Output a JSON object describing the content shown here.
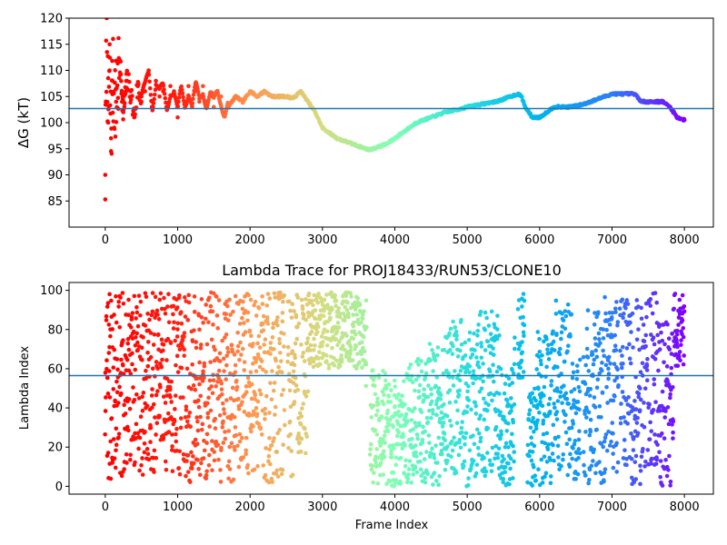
{
  "figure": {
    "colormap": "rainbow",
    "colormap_stops": [
      "#8000ff",
      "#2c7ef7",
      "#00b4eb",
      "#2adddd",
      "#80ffb4",
      "#d4dd80",
      "#ff964f",
      "#ff1c0e",
      "#ff0000"
    ],
    "color_encodes": "reverse of frame order (earliest frames red, latest violet)",
    "hline_color": "#1f77b4"
  },
  "chart_data": [
    {
      "type": "line",
      "title": "",
      "xlabel": "",
      "ylabel": "ΔG (kT)",
      "xlim": [
        -500,
        8400
      ],
      "ylim": [
        80,
        120
      ],
      "xticks": [
        0,
        1000,
        2000,
        3000,
        4000,
        5000,
        6000,
        7000,
        8000
      ],
      "yticks": [
        85,
        90,
        95,
        100,
        105,
        110,
        115,
        120
      ],
      "hline": 102.7,
      "grid": false,
      "legend": "none",
      "marker": "dot",
      "x": [
        0,
        20,
        40,
        60,
        80,
        100,
        150,
        200,
        250,
        300,
        350,
        400,
        450,
        500,
        550,
        600,
        650,
        700,
        750,
        800,
        850,
        900,
        950,
        1000,
        1050,
        1100,
        1150,
        1200,
        1250,
        1300,
        1350,
        1400,
        1450,
        1500,
        1550,
        1600,
        1650,
        1700,
        1750,
        1800,
        1900,
        2000,
        2100,
        2200,
        2300,
        2400,
        2500,
        2600,
        2700,
        2750,
        2800,
        2900,
        3000,
        3100,
        3200,
        3300,
        3400,
        3500,
        3600,
        3650,
        3700,
        3800,
        3900,
        4000,
        4100,
        4200,
        4300,
        4400,
        4500,
        4600,
        4700,
        4800,
        4900,
        5000,
        5100,
        5200,
        5300,
        5400,
        5500,
        5600,
        5700,
        5750,
        5800,
        5900,
        6000,
        6100,
        6200,
        6300,
        6400,
        6500,
        6600,
        6700,
        6800,
        6900,
        7000,
        7100,
        7200,
        7300,
        7350,
        7400,
        7500,
        7600,
        7700,
        7800,
        7900,
        8000
      ],
      "y": [
        90,
        120,
        100,
        110,
        97,
        108,
        104,
        112,
        102,
        108,
        106,
        101,
        107,
        104,
        106,
        110,
        104,
        108,
        105,
        106,
        103,
        107,
        106,
        101,
        106,
        104,
        107,
        103,
        106,
        104,
        107,
        104,
        105,
        103,
        106,
        105,
        102,
        103,
        104,
        105,
        104,
        106,
        105,
        106,
        105,
        105,
        105,
        104.7,
        106,
        105,
        104,
        102,
        99,
        98,
        97,
        96.5,
        96,
        95.5,
        95,
        94.8,
        95,
        95.5,
        96,
        97,
        98,
        99,
        100,
        100.5,
        101,
        101.5,
        102,
        102.3,
        102.6,
        103,
        103.3,
        103.5,
        103.8,
        104,
        104.5,
        105,
        105.5,
        105,
        103,
        101,
        101,
        102,
        103,
        103,
        103,
        103.2,
        103.5,
        104,
        104.5,
        105,
        105.5,
        105.5,
        105.5,
        105.5,
        105,
        104,
        104,
        104,
        104,
        103,
        101,
        100.5
      ]
    },
    {
      "type": "scatter",
      "title": "Lambda Trace for PROJ18433/RUN53/CLONE10",
      "xlabel": "Frame Index",
      "ylabel": "Lambda Index",
      "xlim": [
        -500,
        8400
      ],
      "ylim": [
        -4,
        104
      ],
      "xticks": [
        0,
        1000,
        2000,
        3000,
        4000,
        5000,
        6000,
        7000,
        8000
      ],
      "yticks": [
        0,
        20,
        40,
        60,
        80,
        100
      ],
      "hline": 56.5,
      "grid": false,
      "legend": "none",
      "frames": [
        0,
        8000
      ],
      "lambda_range": [
        0,
        99
      ]
    }
  ]
}
